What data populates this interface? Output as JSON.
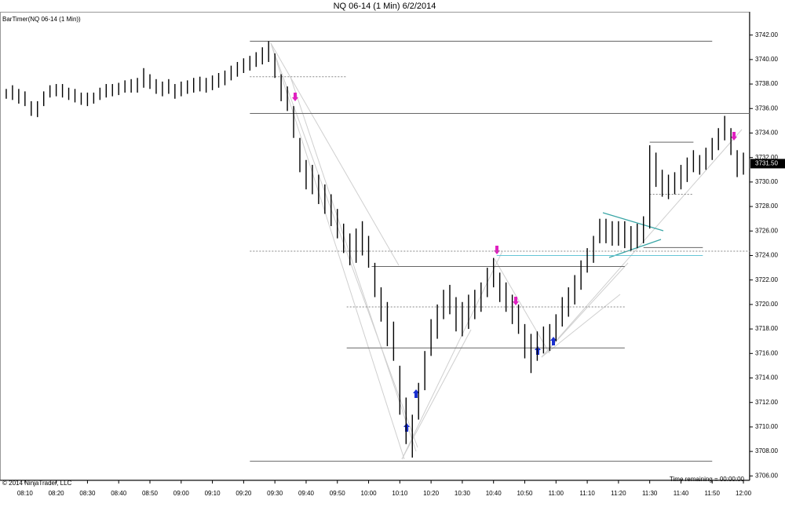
{
  "chart_data": {
    "type": "ohlc",
    "title": "NQ 06-14 (1 Min)  6/2/2014",
    "indicator_label": "BarTimer(NQ 06-14 (1 Min))",
    "copyright": "© 2014 NinjaTrader, LLC",
    "timer_text": "Time remaining = 00:00:00",
    "color": "#000000",
    "x": [
      "08:04",
      "08:06",
      "08:08",
      "08:10",
      "08:12",
      "08:14",
      "08:16",
      "08:18",
      "08:20",
      "08:22",
      "08:24",
      "08:26",
      "08:28",
      "08:30",
      "08:32",
      "08:34",
      "08:36",
      "08:38",
      "08:40",
      "08:42",
      "08:44",
      "08:46",
      "08:48",
      "08:50",
      "08:52",
      "08:54",
      "08:56",
      "08:58",
      "09:00",
      "09:02",
      "09:04",
      "09:06",
      "09:08",
      "09:10",
      "09:12",
      "09:14",
      "09:16",
      "09:18",
      "09:20",
      "09:22",
      "09:24",
      "09:26",
      "09:28",
      "09:30",
      "09:32",
      "09:34",
      "09:36",
      "09:38",
      "09:40",
      "09:42",
      "09:44",
      "09:46",
      "09:48",
      "09:50",
      "09:52",
      "09:54",
      "09:56",
      "09:58",
      "10:00",
      "10:02",
      "10:04",
      "10:06",
      "10:08",
      "10:10",
      "10:12",
      "10:14",
      "10:16",
      "10:18",
      "10:20",
      "10:22",
      "10:24",
      "10:26",
      "10:28",
      "10:30",
      "10:32",
      "10:34",
      "10:36",
      "10:38",
      "10:40",
      "10:42",
      "10:44",
      "10:46",
      "10:48",
      "10:50",
      "10:52",
      "10:54",
      "10:56",
      "10:58",
      "11:00",
      "11:02",
      "11:04",
      "11:06",
      "11:08",
      "11:10",
      "11:12",
      "11:14",
      "11:16",
      "11:18",
      "11:20",
      "11:22",
      "11:24",
      "11:26",
      "11:28",
      "11:30",
      "11:32",
      "11:34",
      "11:36",
      "11:38",
      "11:40",
      "11:42",
      "11:44",
      "11:46",
      "11:48",
      "11:50",
      "11:52",
      "11:54",
      "11:56",
      "11:58",
      "12:00"
    ],
    "high": [
      3737.6,
      3737.9,
      3737.6,
      3737.4,
      3736.6,
      3736.6,
      3737.4,
      3737.9,
      3738,
      3738,
      3737.7,
      3737.6,
      3737.3,
      3737.3,
      3737.3,
      3737.7,
      3738,
      3738,
      3738.1,
      3738.3,
      3738.4,
      3738.5,
      3739.3,
      3738.8,
      3738.4,
      3738.2,
      3738.4,
      3738,
      3738.2,
      3738.3,
      3738.5,
      3738.6,
      3738.5,
      3738.7,
      3738.9,
      3739.1,
      3739.5,
      3739.8,
      3740.1,
      3740.3,
      3740.6,
      3741,
      3741.5,
      3740.5,
      3738.8,
      3737.8,
      3736.2,
      3733.6,
      3731.8,
      3731.4,
      3730.6,
      3729.8,
      3729,
      3727.8,
      3726.6,
      3725.8,
      3726.2,
      3726.8,
      3725.6,
      3723.4,
      3721.4,
      3720.2,
      3718.6,
      3715,
      3712.4,
      3711,
      3713.6,
      3716.2,
      3718.8,
      3720,
      3721.2,
      3721.6,
      3720.6,
      3720.2,
      3720.8,
      3721.2,
      3721.8,
      3723,
      3723.8,
      3722.6,
      3721.8,
      3720.8,
      3720,
      3718.4,
      3717.6,
      3717.8,
      3718.2,
      3718.4,
      3719.2,
      3720.6,
      3721.4,
      3722.4,
      3723.6,
      3724.6,
      3725.6,
      3727,
      3727,
      3726.8,
      3726.8,
      3726.8,
      3726.4,
      3726.6,
      3727.2,
      3733,
      3732.4,
      3731,
      3730.6,
      3730.8,
      3731.4,
      3732,
      3732.6,
      3732.2,
      3732.8,
      3733.6,
      3734.4,
      3735.4,
      3734.4,
      3732.6,
      3732.4
    ],
    "low": [
      3736.8,
      3736.7,
      3736.4,
      3736.2,
      3735.4,
      3735.3,
      3736.2,
      3736.9,
      3737,
      3736.9,
      3736.7,
      3736.5,
      3736.3,
      3736.2,
      3736.4,
      3736.7,
      3736.9,
      3737,
      3737.1,
      3737.3,
      3737.3,
      3737.3,
      3737.7,
      3737.6,
      3737.2,
      3737,
      3737.2,
      3736.8,
      3737,
      3737.2,
      3737.3,
      3737.4,
      3737.3,
      3737.5,
      3737.7,
      3737.9,
      3738.3,
      3738.6,
      3738.9,
      3739.1,
      3739.4,
      3739.6,
      3739.8,
      3738.5,
      3736.6,
      3735.8,
      3733.6,
      3730.8,
      3729.4,
      3729,
      3728.2,
      3727.4,
      3726.4,
      3725.4,
      3724.2,
      3723.2,
      3723.4,
      3724,
      3723,
      3720.6,
      3718.6,
      3716.6,
      3715.4,
      3711,
      3708.6,
      3707.5,
      3710.6,
      3713,
      3715.8,
      3717.2,
      3718.8,
      3719.2,
      3717.8,
      3717.4,
      3718,
      3718.8,
      3719.4,
      3720.6,
      3721.4,
      3720.2,
      3719.4,
      3718.4,
      3717.6,
      3715.6,
      3714.4,
      3715.4,
      3716,
      3716.2,
      3717,
      3718.2,
      3719,
      3720,
      3721.2,
      3722.6,
      3723.4,
      3725,
      3725,
      3724.8,
      3724.8,
      3724.6,
      3724.4,
      3724.6,
      3725,
      3726.2,
      3729.6,
      3728.8,
      3728.6,
      3729,
      3729.4,
      3730,
      3730.8,
      3730.6,
      3731,
      3731.8,
      3732.6,
      3733.4,
      3732.2,
      3730.4,
      3730.6
    ],
    "last_price": {
      "value": 3731.5,
      "label": "3731.50"
    },
    "levels": [
      {
        "value": 3741.5,
        "from": "09:22",
        "to": "11:50",
        "style": "solid",
        "color": "#666666"
      },
      {
        "value": 3738.6,
        "from": "09:22",
        "to": "09:53",
        "style": "dashed",
        "color": "#888888"
      },
      {
        "value": 3735.6,
        "from": "09:22",
        "to": "12:02",
        "style": "solid",
        "color": "#666666"
      },
      {
        "value": 3724.35,
        "from": "09:22",
        "to": "12:02",
        "style": "dashed",
        "color": "#888888"
      },
      {
        "value": 3723.1,
        "from": "10:01",
        "to": "11:22",
        "style": "solid",
        "color": "#666666"
      },
      {
        "value": 3719.8,
        "from": "09:53",
        "to": "11:22",
        "style": "dashed",
        "color": "#888888"
      },
      {
        "value": 3716.45,
        "from": "09:53",
        "to": "11:22",
        "style": "solid",
        "color": "#666666"
      },
      {
        "value": 3707.2,
        "from": "09:22",
        "to": "11:50",
        "style": "solid",
        "color": "#666666"
      },
      {
        "value": 3733.25,
        "from": "11:30",
        "to": "11:44",
        "style": "solid",
        "color": "#666666"
      },
      {
        "value": 3729,
        "from": "11:30",
        "to": "11:44",
        "style": "dashed",
        "color": "#888888"
      },
      {
        "value": 3724.65,
        "from": "11:28",
        "to": "11:47",
        "style": "solid",
        "color": "#666666"
      },
      {
        "value": 3724,
        "from": "10:41",
        "to": "11:47",
        "style": "solid",
        "color": "#66c6d6"
      }
    ],
    "xlim": [
      "08:02",
      "12:02"
    ],
    "xticks": [
      "08:10",
      "08:20",
      "08:30",
      "08:40",
      "08:50",
      "09:00",
      "09:10",
      "09:20",
      "09:30",
      "09:40",
      "09:50",
      "10:00",
      "10:10",
      "10:20",
      "10:30",
      "10:40",
      "10:50",
      "11:00",
      "11:10",
      "11:20",
      "11:30",
      "11:40",
      "11:50",
      "12:00"
    ],
    "ylim": [
      3705.7,
      3743.9
    ],
    "yticks": [
      {
        "value": 3706,
        "label": "3706.00"
      },
      {
        "value": 3708,
        "label": "3708.00"
      },
      {
        "value": 3710,
        "label": "3710.00"
      },
      {
        "value": 3712,
        "label": "3712.00"
      },
      {
        "value": 3714,
        "label": "3714.00"
      },
      {
        "value": 3716,
        "label": "3716.00"
      },
      {
        "value": 3718,
        "label": "3718.00"
      },
      {
        "value": 3720,
        "label": "3720.00"
      },
      {
        "value": 3722,
        "label": "3722.00"
      },
      {
        "value": 3724,
        "label": "3724.00"
      },
      {
        "value": 3726,
        "label": "3726.00"
      },
      {
        "value": 3728,
        "label": "3728.00"
      },
      {
        "value": 3730,
        "label": "3730.00"
      },
      {
        "value": 3732,
        "label": "3732.00"
      },
      {
        "value": 3734,
        "label": "3734.00"
      },
      {
        "value": 3736,
        "label": "3736.00"
      },
      {
        "value": 3738,
        "label": "3738.00"
      },
      {
        "value": 3740,
        "label": "3740.00"
      },
      {
        "value": 3742,
        "label": "3742.00"
      }
    ]
  }
}
